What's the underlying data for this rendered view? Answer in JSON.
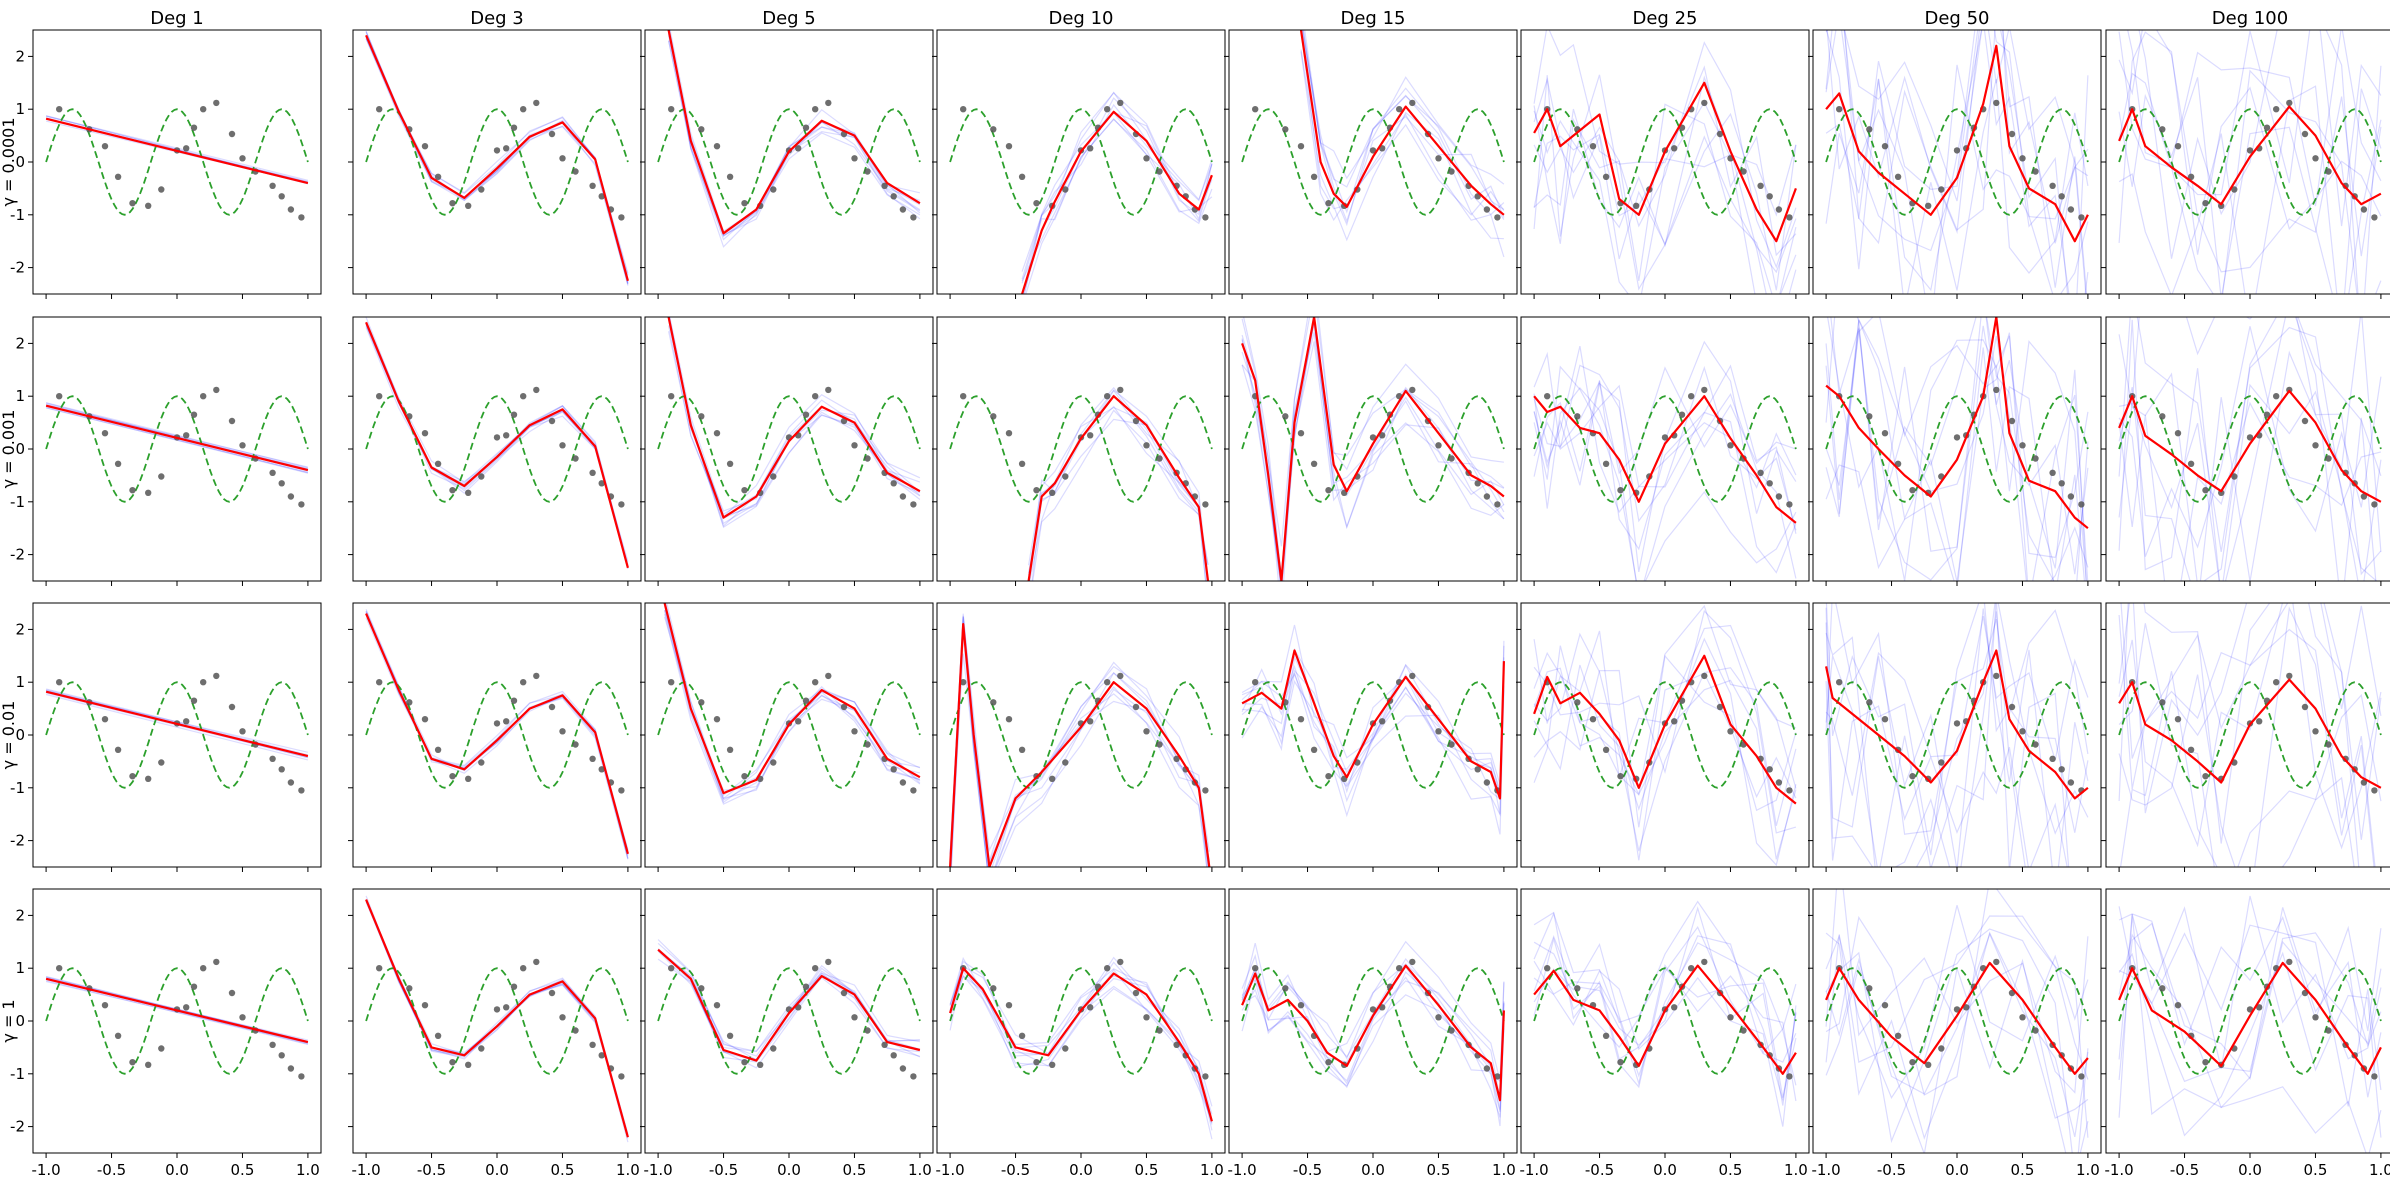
{
  "chart_data": {
    "type": "line",
    "layout": "grid",
    "column_titles": [
      "Deg 1",
      "Deg 3",
      "Deg 5",
      "Deg 10",
      "Deg 15",
      "Deg 25",
      "Deg 50",
      "Deg 100"
    ],
    "row_labels": [
      "γ = 0.0001",
      "γ = 0.001",
      "γ = 0.01",
      "γ = 1"
    ],
    "xlim": [
      -1.1,
      1.1
    ],
    "ylim": [
      -2.5,
      2.5
    ],
    "x_ticks": [
      "-1.0",
      "-0.5",
      "0.0",
      "0.5",
      "1.0"
    ],
    "y_ticks": [
      "2",
      "1",
      "0",
      "-1",
      "-2"
    ],
    "grid": false,
    "colors": {
      "true_function": "#2ca02c",
      "mean_fit": "#ff0000",
      "bootstrap_fits": "#0000ff",
      "data_points": "#555555"
    },
    "true_function": "sin(2.5πx+0.5π) (dashed)",
    "data_points": {
      "x": [
        -0.9,
        -0.67,
        -0.55,
        -0.45,
        -0.34,
        -0.22,
        -0.12,
        0.0,
        0.07,
        0.13,
        0.2,
        0.3,
        0.42,
        0.5,
        0.6,
        0.73,
        0.8,
        0.87,
        0.95
      ],
      "y": [
        1.0,
        0.62,
        0.3,
        -0.28,
        -0.78,
        -0.83,
        -0.52,
        0.22,
        0.26,
        0.65,
        1.0,
        1.12,
        0.53,
        0.07,
        -0.18,
        -0.45,
        -0.65,
        -0.9,
        -1.05
      ]
    },
    "panels": [
      [
        {
          "degree": 1,
          "gamma": "0.0001",
          "mean_fit": {
            "x": [
              -1.0,
              1.0
            ],
            "y": [
              0.82,
              -0.4
            ]
          }
        },
        {
          "degree": 3,
          "gamma": "0.0001",
          "mean_fit": {
            "x": [
              -1.0,
              -0.75,
              -0.5,
              -0.25,
              0.0,
              0.25,
              0.5,
              0.75,
              1.0
            ],
            "y": [
              2.4,
              0.95,
              -0.3,
              -0.68,
              -0.12,
              0.48,
              0.75,
              0.05,
              -2.25
            ]
          }
        },
        {
          "degree": 5,
          "gamma": "0.0001",
          "mean_fit": {
            "x": [
              -0.92,
              -0.75,
              -0.5,
              -0.25,
              0.0,
              0.25,
              0.5,
              0.75,
              1.0
            ],
            "y": [
              2.5,
              0.4,
              -1.35,
              -0.9,
              0.2,
              0.78,
              0.5,
              -0.4,
              -0.78
            ]
          }
        },
        {
          "degree": 10,
          "gamma": "0.0001",
          "mean_fit": {
            "x": [
              -0.45,
              -0.3,
              -0.2,
              0.0,
              0.25,
              0.5,
              0.75,
              0.9,
              1.0
            ],
            "y": [
              -2.5,
              -1.3,
              -0.75,
              0.2,
              0.95,
              0.4,
              -0.6,
              -0.9,
              -0.25
            ]
          }
        },
        {
          "degree": 15,
          "gamma": "0.0001",
          "mean_fit": {
            "x": [
              -0.55,
              -0.4,
              -0.3,
              -0.2,
              0.0,
              0.25,
              0.5,
              0.75,
              0.9,
              1.0
            ],
            "y": [
              2.5,
              0.0,
              -0.6,
              -0.85,
              0.1,
              1.05,
              0.3,
              -0.45,
              -0.8,
              -1.0
            ]
          }
        },
        {
          "degree": 25,
          "gamma": "0.0001",
          "mean_fit": {
            "x": [
              -1.0,
              -0.9,
              -0.8,
              -0.7,
              -0.5,
              -0.35,
              -0.2,
              0.0,
              0.3,
              0.5,
              0.7,
              0.85,
              1.0
            ],
            "y": [
              0.55,
              1.0,
              0.3,
              0.5,
              0.9,
              -0.7,
              -1.0,
              0.2,
              1.5,
              0.2,
              -0.9,
              -1.5,
              -0.5
            ]
          }
        },
        {
          "degree": 50,
          "gamma": "0.0001",
          "mean_fit": {
            "x": [
              -1.0,
              -0.9,
              -0.75,
              -0.6,
              -0.4,
              -0.2,
              0.0,
              0.2,
              0.3,
              0.4,
              0.55,
              0.75,
              0.9,
              1.0
            ],
            "y": [
              1.0,
              1.3,
              0.2,
              -0.2,
              -0.6,
              -1.0,
              -0.3,
              1.1,
              2.2,
              0.3,
              -0.5,
              -0.8,
              -1.5,
              -1.0
            ]
          }
        },
        {
          "degree": 100,
          "gamma": "0.0001",
          "mean_fit": {
            "x": [
              -1.0,
              -0.9,
              -0.8,
              -0.6,
              -0.4,
              -0.22,
              0.0,
              0.3,
              0.5,
              0.7,
              0.85,
              1.0
            ],
            "y": [
              0.4,
              1.0,
              0.3,
              -0.1,
              -0.45,
              -0.8,
              0.1,
              1.05,
              0.5,
              -0.4,
              -0.8,
              -0.6
            ]
          }
        }
      ],
      [
        {
          "degree": 1,
          "gamma": "0.001",
          "mean_fit": {
            "x": [
              -1.0,
              1.0
            ],
            "y": [
              0.82,
              -0.4
            ]
          }
        },
        {
          "degree": 3,
          "gamma": "0.001",
          "mean_fit": {
            "x": [
              -1.0,
              -0.75,
              -0.5,
              -0.25,
              0.0,
              0.25,
              0.5,
              0.75,
              1.0
            ],
            "y": [
              2.4,
              0.9,
              -0.35,
              -0.7,
              -0.15,
              0.45,
              0.75,
              0.05,
              -2.25
            ]
          }
        },
        {
          "degree": 5,
          "gamma": "0.001",
          "mean_fit": {
            "x": [
              -0.92,
              -0.75,
              -0.5,
              -0.25,
              0.0,
              0.25,
              0.5,
              0.75,
              1.0
            ],
            "y": [
              2.5,
              0.45,
              -1.3,
              -0.9,
              0.15,
              0.8,
              0.5,
              -0.45,
              -0.8
            ]
          }
        },
        {
          "degree": 10,
          "gamma": "0.001",
          "mean_fit": {
            "x": [
              -0.4,
              -0.3,
              -0.2,
              0.0,
              0.25,
              0.5,
              0.75,
              0.9,
              0.97
            ],
            "y": [
              -2.5,
              -0.9,
              -0.65,
              0.2,
              1.0,
              0.45,
              -0.55,
              -1.1,
              -2.5
            ]
          }
        },
        {
          "degree": 15,
          "gamma": "0.001",
          "mean_fit": {
            "x": [
              -1.0,
              -0.9,
              -0.8,
              -0.7,
              -0.6,
              -0.45,
              -0.3,
              -0.2,
              0.0,
              0.25,
              0.5,
              0.75,
              0.9,
              1.0
            ],
            "y": [
              2.0,
              1.3,
              -0.5,
              -2.5,
              0.5,
              2.5,
              -0.3,
              -0.8,
              0.1,
              1.1,
              0.3,
              -0.5,
              -0.7,
              -0.9
            ]
          }
        },
        {
          "degree": 25,
          "gamma": "0.001",
          "mean_fit": {
            "x": [
              -1.0,
              -0.9,
              -0.8,
              -0.65,
              -0.5,
              -0.35,
              -0.2,
              0.0,
              0.3,
              0.5,
              0.7,
              0.85,
              1.0
            ],
            "y": [
              1.0,
              0.7,
              0.8,
              0.4,
              0.3,
              -0.2,
              -1.0,
              0.1,
              1.0,
              0.2,
              -0.5,
              -1.1,
              -1.4
            ]
          }
        },
        {
          "degree": 50,
          "gamma": "0.001",
          "mean_fit": {
            "x": [
              -1.0,
              -0.9,
              -0.75,
              -0.6,
              -0.4,
              -0.2,
              0.0,
              0.2,
              0.3,
              0.4,
              0.55,
              0.75,
              0.9,
              1.0
            ],
            "y": [
              1.2,
              1.0,
              0.4,
              0.0,
              -0.5,
              -0.9,
              -0.2,
              1.0,
              2.5,
              0.3,
              -0.6,
              -0.8,
              -1.3,
              -1.5
            ]
          }
        },
        {
          "degree": 100,
          "gamma": "0.001",
          "mean_fit": {
            "x": [
              -1.0,
              -0.9,
              -0.8,
              -0.6,
              -0.4,
              -0.22,
              0.0,
              0.3,
              0.5,
              0.7,
              0.85,
              1.0
            ],
            "y": [
              0.4,
              1.0,
              0.25,
              -0.1,
              -0.5,
              -0.8,
              0.1,
              1.1,
              0.5,
              -0.4,
              -0.8,
              -1.0
            ]
          }
        }
      ],
      [
        {
          "degree": 1,
          "gamma": "0.01",
          "mean_fit": {
            "x": [
              -1.0,
              1.0
            ],
            "y": [
              0.82,
              -0.4
            ]
          }
        },
        {
          "degree": 3,
          "gamma": "0.01",
          "mean_fit": {
            "x": [
              -1.0,
              -0.75,
              -0.5,
              -0.25,
              0.0,
              0.25,
              0.5,
              0.75,
              1.0
            ],
            "y": [
              2.3,
              0.85,
              -0.45,
              -0.65,
              -0.1,
              0.5,
              0.75,
              0.05,
              -2.25
            ]
          }
        },
        {
          "degree": 5,
          "gamma": "0.01",
          "mean_fit": {
            "x": [
              -0.95,
              -0.75,
              -0.5,
              -0.25,
              0.0,
              0.25,
              0.5,
              0.75,
              1.0
            ],
            "y": [
              2.5,
              0.5,
              -1.1,
              -0.85,
              0.2,
              0.85,
              0.5,
              -0.45,
              -0.8
            ]
          }
        },
        {
          "degree": 10,
          "gamma": "0.01",
          "mean_fit": {
            "x": [
              -1.0,
              -0.9,
              -0.82,
              -0.7,
              -0.5,
              -0.3,
              0.0,
              0.25,
              0.5,
              0.75,
              0.9,
              0.98
            ],
            "y": [
              -2.5,
              2.1,
              0.0,
              -2.5,
              -1.2,
              -0.7,
              0.15,
              1.0,
              0.5,
              -0.4,
              -1.0,
              -2.5
            ]
          }
        },
        {
          "degree": 15,
          "gamma": "0.01",
          "mean_fit": {
            "x": [
              -1.0,
              -0.85,
              -0.7,
              -0.6,
              -0.45,
              -0.3,
              -0.2,
              0.0,
              0.25,
              0.5,
              0.75,
              0.9,
              0.97,
              1.0
            ],
            "y": [
              0.6,
              0.8,
              0.5,
              1.6,
              0.6,
              -0.4,
              -0.8,
              0.2,
              1.1,
              0.3,
              -0.5,
              -0.7,
              -1.2,
              1.4
            ]
          }
        },
        {
          "degree": 25,
          "gamma": "0.01",
          "mean_fit": {
            "x": [
              -1.0,
              -0.9,
              -0.8,
              -0.65,
              -0.5,
              -0.35,
              -0.2,
              0.0,
              0.3,
              0.5,
              0.7,
              0.85,
              1.0
            ],
            "y": [
              0.4,
              1.1,
              0.6,
              0.8,
              0.4,
              -0.1,
              -1.0,
              0.2,
              1.5,
              0.2,
              -0.4,
              -1.0,
              -1.3
            ]
          }
        },
        {
          "degree": 50,
          "gamma": "0.01",
          "mean_fit": {
            "x": [
              -1.0,
              -0.95,
              -0.8,
              -0.6,
              -0.4,
              -0.2,
              0.0,
              0.2,
              0.3,
              0.4,
              0.55,
              0.75,
              0.9,
              1.0
            ],
            "y": [
              1.3,
              0.7,
              0.4,
              0.0,
              -0.4,
              -0.9,
              -0.3,
              1.0,
              1.6,
              0.3,
              -0.3,
              -0.7,
              -1.2,
              -1.0
            ]
          }
        },
        {
          "degree": 100,
          "gamma": "0.01",
          "mean_fit": {
            "x": [
              -1.0,
              -0.9,
              -0.8,
              -0.6,
              -0.4,
              -0.22,
              0.0,
              0.3,
              0.5,
              0.7,
              0.85,
              1.0
            ],
            "y": [
              0.6,
              1.0,
              0.2,
              -0.1,
              -0.5,
              -0.9,
              0.2,
              1.05,
              0.5,
              -0.4,
              -0.8,
              -1.0
            ]
          }
        }
      ],
      [
        {
          "degree": 1,
          "gamma": "1",
          "mean_fit": {
            "x": [
              -1.0,
              1.0
            ],
            "y": [
              0.8,
              -0.4
            ]
          }
        },
        {
          "degree": 3,
          "gamma": "1",
          "mean_fit": {
            "x": [
              -1.0,
              -0.75,
              -0.5,
              -0.25,
              0.0,
              0.25,
              0.5,
              0.75,
              1.0
            ],
            "y": [
              2.3,
              0.8,
              -0.5,
              -0.65,
              -0.1,
              0.5,
              0.75,
              0.05,
              -2.2
            ]
          }
        },
        {
          "degree": 5,
          "gamma": "1",
          "mean_fit": {
            "x": [
              -1.0,
              -0.75,
              -0.5,
              -0.25,
              0.0,
              0.25,
              0.5,
              0.75,
              1.0
            ],
            "y": [
              1.35,
              0.8,
              -0.55,
              -0.75,
              0.15,
              0.85,
              0.5,
              -0.4,
              -0.55
            ]
          }
        },
        {
          "degree": 10,
          "gamma": "1",
          "mean_fit": {
            "x": [
              -1.0,
              -0.9,
              -0.75,
              -0.5,
              -0.25,
              0.0,
              0.25,
              0.5,
              0.75,
              0.9,
              1.0
            ],
            "y": [
              0.15,
              1.0,
              0.6,
              -0.5,
              -0.65,
              0.2,
              0.9,
              0.5,
              -0.4,
              -1.0,
              -1.9
            ]
          }
        },
        {
          "degree": 15,
          "gamma": "1",
          "mean_fit": {
            "x": [
              -1.0,
              -0.9,
              -0.8,
              -0.65,
              -0.5,
              -0.35,
              -0.2,
              0.0,
              0.25,
              0.5,
              0.75,
              0.9,
              0.97,
              1.0
            ],
            "y": [
              0.3,
              0.9,
              0.2,
              0.4,
              0.0,
              -0.6,
              -0.85,
              0.1,
              1.05,
              0.3,
              -0.5,
              -0.8,
              -1.5,
              0.2
            ]
          }
        },
        {
          "degree": 25,
          "gamma": "1",
          "mean_fit": {
            "x": [
              -1.0,
              -0.85,
              -0.7,
              -0.5,
              -0.35,
              -0.2,
              0.0,
              0.25,
              0.5,
              0.75,
              0.9,
              1.0
            ],
            "y": [
              0.5,
              0.95,
              0.4,
              0.2,
              -0.3,
              -0.85,
              0.2,
              1.05,
              0.3,
              -0.5,
              -1.0,
              -0.6
            ]
          }
        },
        {
          "degree": 50,
          "gamma": "1",
          "mean_fit": {
            "x": [
              -1.0,
              -0.9,
              -0.75,
              -0.5,
              -0.25,
              0.0,
              0.25,
              0.5,
              0.75,
              0.9,
              1.0
            ],
            "y": [
              0.4,
              1.0,
              0.4,
              -0.3,
              -0.8,
              0.1,
              1.1,
              0.4,
              -0.5,
              -1.0,
              -0.7
            ]
          }
        },
        {
          "degree": 100,
          "gamma": "1",
          "mean_fit": {
            "x": [
              -1.0,
              -0.9,
              -0.75,
              -0.5,
              -0.22,
              0.0,
              0.25,
              0.5,
              0.75,
              0.9,
              1.0
            ],
            "y": [
              0.4,
              1.0,
              0.2,
              -0.2,
              -0.85,
              0.1,
              1.1,
              0.4,
              -0.5,
              -1.0,
              -0.5
            ]
          }
        }
      ]
    ]
  }
}
